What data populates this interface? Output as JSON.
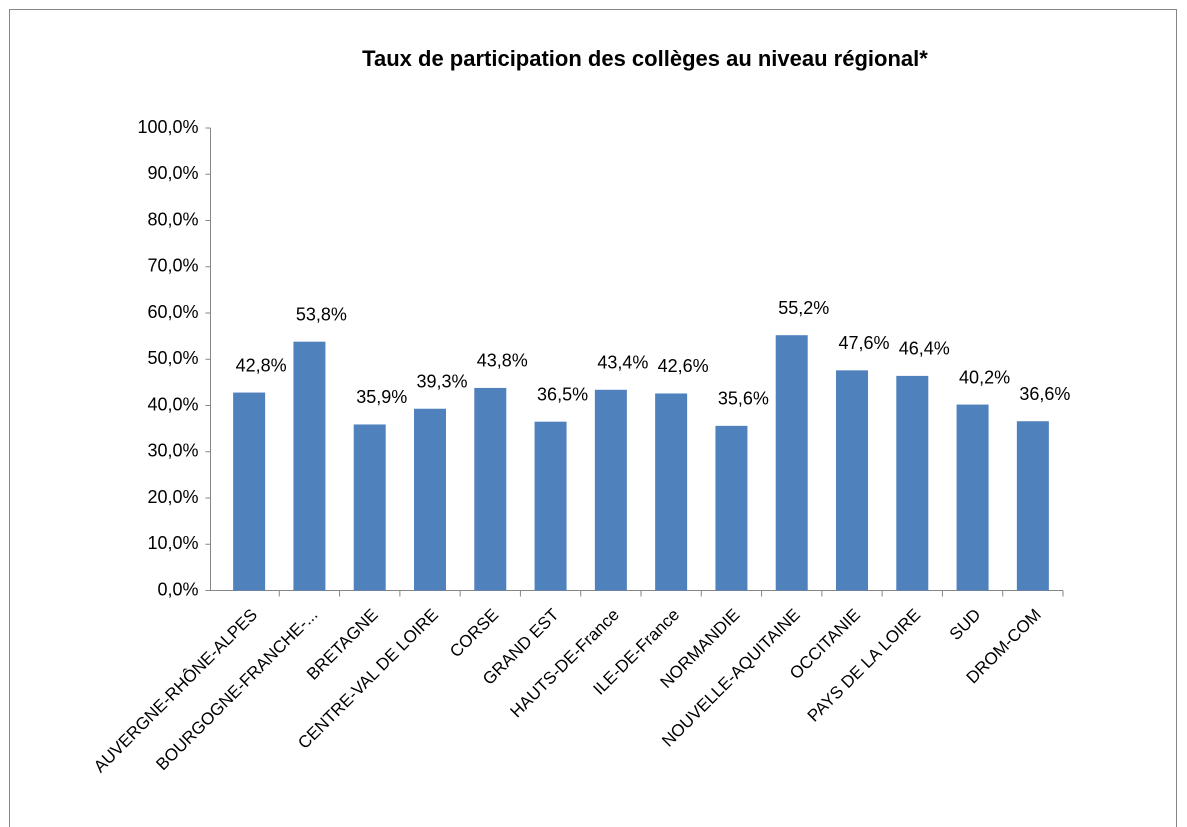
{
  "chart_data": {
    "type": "bar",
    "title": "Taux de participation des collèges au niveau régional*",
    "categories": [
      "AUVERGNE-RHÔNE-ALPES",
      "BOURGOGNE-FRANCHE-...",
      "BRETAGNE",
      "CENTRE-VAL DE LOIRE",
      "CORSE",
      "GRAND EST",
      "HAUTS-DE-France",
      "ILE-DE-France",
      "NORMANDIE",
      "NOUVELLE-AQUITAINE",
      "OCCITANIE",
      "PAYS DE LA LOIRE",
      "SUD",
      "DROM-COM"
    ],
    "values": [
      42.8,
      53.8,
      35.9,
      39.3,
      43.8,
      36.5,
      43.4,
      42.6,
      35.6,
      55.2,
      47.6,
      46.4,
      40.2,
      36.6
    ],
    "value_labels": [
      "42,8%",
      "53,8%",
      "35,9%",
      "39,3%",
      "43,8%",
      "36,5%",
      "43,4%",
      "42,6%",
      "35,6%",
      "55,2%",
      "47,6%",
      "46,4%",
      "40,2%",
      "36,6%"
    ],
    "color": "#4f81bd",
    "ylim": [
      0,
      100
    ],
    "yticks": [
      {
        "value": 0,
        "label": "0,0%"
      },
      {
        "value": 10,
        "label": "10,0%"
      },
      {
        "value": 20,
        "label": "20,0%"
      },
      {
        "value": 30,
        "label": "30,0%"
      },
      {
        "value": 40,
        "label": "40,0%"
      },
      {
        "value": 50,
        "label": "50,0%"
      },
      {
        "value": 60,
        "label": "60,0%"
      },
      {
        "value": 70,
        "label": "70,0%"
      },
      {
        "value": 80,
        "label": "80,0%"
      },
      {
        "value": 90,
        "label": "90,0%"
      },
      {
        "value": 100,
        "label": "100,0%"
      }
    ],
    "grid": false
  }
}
